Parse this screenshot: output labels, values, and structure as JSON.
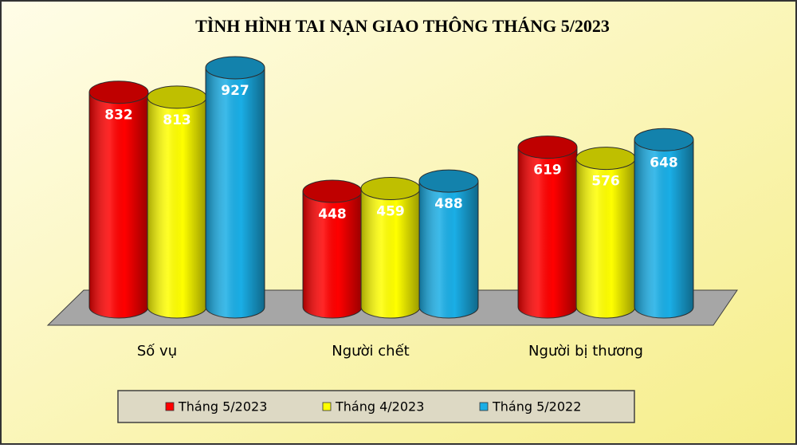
{
  "chart_data": {
    "type": "bar",
    "title": "TÌNH HÌNH TAI NẠN GIAO THÔNG THÁNG 5/2023",
    "categories": [
      "Số vụ",
      "Người chết",
      "Người bị thương"
    ],
    "series": [
      {
        "name": "Tháng 5/2023",
        "color": "#ff0000",
        "values": [
          832,
          448,
          619
        ]
      },
      {
        "name": "Tháng 4/2023",
        "color": "#ffff00",
        "values": [
          813,
          459,
          576
        ]
      },
      {
        "name": "Tháng 5/2022",
        "color": "#1aaee6",
        "values": [
          927,
          488,
          648
        ]
      }
    ]
  }
}
